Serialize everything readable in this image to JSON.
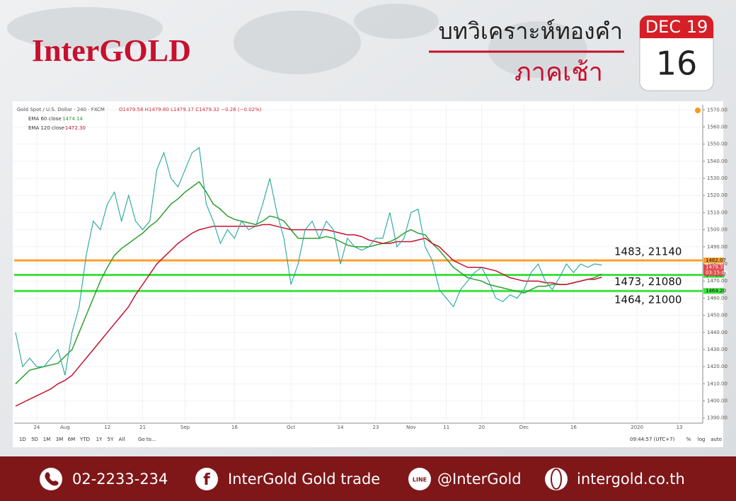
{
  "header": {
    "brand": "InterGOLD",
    "title": "บทวิเคราะห์ทองคำ",
    "subtitle": "ภาคเช้า",
    "date_top": "DEC 19",
    "date_day": "16"
  },
  "chart_data": {
    "type": "line",
    "symbol": "Gold Spot / U.S. Dollar · 240 · FXCM",
    "quote": "O1479.58 H1479.80 L1479.17 C1479.32 −0.26 (−0.02%)",
    "categories": [
      null,
      null,
      null,
      "24",
      null,
      null,
      null,
      "Aug",
      null,
      null,
      null,
      null,
      null,
      "12",
      null,
      null,
      null,
      null,
      "21",
      null,
      null,
      null,
      null,
      null,
      "Sep",
      null,
      null,
      null,
      null,
      null,
      null,
      "16",
      null,
      null,
      null,
      null,
      null,
      null,
      null,
      "Oct",
      null,
      null,
      null,
      null,
      null,
      null,
      "14",
      null,
      null,
      null,
      null,
      "23",
      null,
      null,
      null,
      null,
      "Nov",
      null,
      null,
      null,
      null,
      "11",
      null,
      null,
      null,
      null,
      "20",
      null,
      null,
      null,
      null,
      null,
      "Dec",
      null,
      null,
      null,
      null,
      null,
      null,
      "16",
      null,
      null,
      null,
      null,
      null,
      null,
      null,
      null,
      "2020",
      null,
      null,
      null,
      null,
      null,
      "13",
      null,
      null,
      null
    ],
    "values": [
      1440,
      1420,
      1425,
      1420,
      1420,
      1425,
      1430,
      1415,
      1440,
      1455,
      1485,
      1505,
      1500,
      1515,
      1522,
      1505,
      1520,
      1505,
      1500,
      1505,
      1535,
      1545,
      1530,
      1525,
      1535,
      1545,
      1548,
      1515,
      1505,
      1492,
      1500,
      1495,
      1505,
      1500,
      1502,
      1515,
      1530,
      1510,
      1495,
      1468,
      1480,
      1500,
      1505,
      1495,
      1505,
      1500,
      1480,
      1495,
      1490,
      1488,
      1490,
      1495,
      1495,
      1510,
      1490,
      1495,
      1510,
      1512,
      1490,
      1482,
      1465,
      1460,
      1455,
      1465,
      1470,
      1475,
      1478,
      1470,
      1460,
      1458,
      1462,
      1460,
      1465,
      1475,
      1480,
      1470,
      1465,
      1472,
      1480,
      1475,
      1480,
      1478,
      1480,
      1479.32,
      null,
      null,
      null,
      null,
      null,
      null,
      null,
      null,
      null,
      null,
      null,
      null,
      null,
      null
    ],
    "color": "#26a69a",
    "series": [
      {
        "name": "EMA 60 close",
        "legend_value": "1474.14",
        "color": "#2e9e2e",
        "values": [
          1410,
          1414,
          1418,
          1419,
          1420,
          1421,
          1422,
          1426,
          1430,
          1440,
          1450,
          1460,
          1470,
          1478,
          1485,
          1489,
          1492,
          1495,
          1498,
          1502,
          1505,
          1510,
          1515,
          1518,
          1522,
          1525,
          1528,
          1522,
          1515,
          1512,
          1508,
          1506,
          1505,
          1504,
          1503,
          1505,
          1508,
          1507,
          1505,
          1500,
          1495,
          1495,
          1495,
          1495,
          1496,
          1495,
          1493,
          1491,
          1490,
          1490,
          1490,
          1491,
          1492,
          1493,
          1495,
          1498,
          1500,
          1498,
          1497,
          1492,
          1488,
          1483,
          1478,
          1475,
          1472,
          1471,
          1470,
          1468,
          1467,
          1466,
          1465,
          1464,
          1463,
          1465,
          1467,
          1467,
          1468,
          1468,
          1468,
          1469,
          1470,
          1471,
          1472,
          1474.14,
          null,
          null,
          null,
          null,
          null,
          null,
          null,
          null,
          null,
          null,
          null,
          null,
          null,
          null
        ]
      },
      {
        "name": "EMA 120 close",
        "legend_value": "1472.30",
        "color": "#c8102e",
        "values": [
          1397,
          1399,
          1401,
          1403,
          1405,
          1407,
          1410,
          1412,
          1415,
          1420,
          1425,
          1430,
          1435,
          1440,
          1445,
          1450,
          1455,
          1462,
          1468,
          1474,
          1480,
          1484,
          1488,
          1492,
          1495,
          1498,
          1500,
          1501,
          1502,
          1502,
          1502,
          1502,
          1502,
          1502,
          1502,
          1503,
          1503,
          1502,
          1501,
          1500,
          1500,
          1500,
          1500,
          1500,
          1500,
          1499,
          1498,
          1497,
          1497,
          1496,
          1494,
          1493,
          1492,
          1492,
          1493,
          1493,
          1493,
          1494,
          1495,
          1492,
          1490,
          1486,
          1482,
          1480,
          1478,
          1478,
          1478,
          1477,
          1476,
          1474,
          1472,
          1471,
          1470,
          1470,
          1470,
          1469,
          1469,
          1468,
          1468,
          1469,
          1470,
          1471,
          1471,
          1472.3,
          null,
          null,
          null,
          null,
          null,
          null,
          null,
          null,
          null,
          null,
          null,
          null,
          null,
          null
        ]
      }
    ],
    "levels": [
      {
        "value": 1482.07,
        "note": "1483, 21140",
        "color": "#ff9f2e"
      },
      {
        "value": 1473.57,
        "note": "1473, 21080",
        "color": "#3ee13e"
      },
      {
        "value": 1464.2,
        "label": "1464.20",
        "note": "1464, 21000",
        "color": "#3ee13e"
      }
    ],
    "countdown": "03:15:03",
    "ylim": [
      1387,
      1573
    ],
    "yticks": [
      {
        "value": 1390,
        "label": "1390.00"
      },
      {
        "value": 1400,
        "label": "1400.00"
      },
      {
        "value": 1410,
        "label": "1410.00"
      },
      {
        "value": 1420,
        "label": "1420.00"
      },
      {
        "value": 1430,
        "label": "1430.00"
      },
      {
        "value": 1440,
        "label": "1440.00"
      },
      {
        "value": 1450,
        "label": "1450.00"
      },
      {
        "value": 1460,
        "label": "1460.00"
      },
      {
        "value": 1470,
        "label": "1470.00"
      },
      {
        "value": 1480,
        "label": "1480.00"
      },
      {
        "value": 1490,
        "label": "1490.00"
      },
      {
        "value": 1500,
        "label": "1500.00"
      },
      {
        "value": 1510,
        "label": "1510.00"
      },
      {
        "value": 1520,
        "label": "1520.00"
      },
      {
        "value": 1530,
        "label": "1530.00"
      },
      {
        "value": 1540,
        "label": "1540.00"
      },
      {
        "value": 1550,
        "label": "1550.00"
      },
      {
        "value": 1560,
        "label": "1560.00"
      },
      {
        "value": 1570,
        "label": "1570.00"
      }
    ],
    "grid": true
  },
  "toolbar": {
    "ranges": [
      "1D",
      "5D",
      "1M",
      "3M",
      "6M",
      "YTD",
      "1Y",
      "5Y",
      "All"
    ],
    "goto": "Go to...",
    "clock": "09:44:57 (UTC+7)",
    "options": [
      "%",
      "log",
      "auto"
    ]
  },
  "footer": {
    "phone": "02-2233-234",
    "facebook": "InterGold Gold trade",
    "line": "@InterGold",
    "web": "intergold.co.th"
  }
}
